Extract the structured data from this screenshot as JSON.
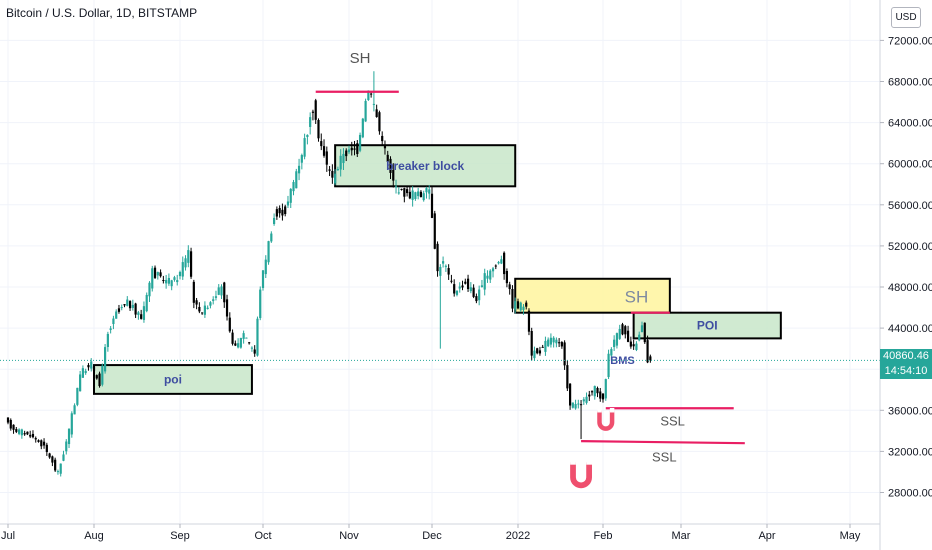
{
  "header": {
    "title": "Bitcoin / U.S. Dollar, 1D, BITSTAMP",
    "currency": "USD"
  },
  "last_price": {
    "value": "40860.46",
    "countdown": "14:54:10"
  },
  "chart_data": {
    "type": "candlestick",
    "y_axis": {
      "min": 26000,
      "max": 74000,
      "ticks": [
        "72000.00",
        "68000.00",
        "64000.00",
        "60000.00",
        "56000.00",
        "52000.00",
        "48000.00",
        "44000.00",
        "40000.00",
        "36000.00",
        "32000.00",
        "28000.00"
      ]
    },
    "x_axis": {
      "labels": [
        "Jul",
        "Aug",
        "Sep",
        "Oct",
        "Nov",
        "Dec",
        "2022",
        "Feb",
        "Mar",
        "Apr",
        "May"
      ]
    },
    "price_path": [
      [
        "2021-07-01",
        35000
      ],
      [
        "2021-07-05",
        34000
      ],
      [
        "2021-07-10",
        33600
      ],
      [
        "2021-07-15",
        32500
      ],
      [
        "2021-07-20",
        29800
      ],
      [
        "2021-07-24",
        34000
      ],
      [
        "2021-07-28",
        39500
      ],
      [
        "2021-08-01",
        40500
      ],
      [
        "2021-08-04",
        38500
      ],
      [
        "2021-08-07",
        43500
      ],
      [
        "2021-08-10",
        45500
      ],
      [
        "2021-08-14",
        46500
      ],
      [
        "2021-08-19",
        45000
      ],
      [
        "2021-08-23",
        49500
      ],
      [
        "2021-08-28",
        48500
      ],
      [
        "2021-09-01",
        48800
      ],
      [
        "2021-09-05",
        51500
      ],
      [
        "2021-09-07",
        46500
      ],
      [
        "2021-09-10",
        45500
      ],
      [
        "2021-09-14",
        47000
      ],
      [
        "2021-09-17",
        48000
      ],
      [
        "2021-09-20",
        43500
      ],
      [
        "2021-09-22",
        42000
      ],
      [
        "2021-09-25",
        43500
      ],
      [
        "2021-09-29",
        41500
      ],
      [
        "2021-10-01",
        48000
      ],
      [
        "2021-10-06",
        55000
      ],
      [
        "2021-10-10",
        55500
      ],
      [
        "2021-10-15",
        60000
      ],
      [
        "2021-10-20",
        65500
      ],
      [
        "2021-10-23",
        61500
      ],
      [
        "2021-10-27",
        58500
      ],
      [
        "2021-10-31",
        61000
      ],
      [
        "2021-11-05",
        61500
      ],
      [
        "2021-11-09",
        67500
      ],
      [
        "2021-11-12",
        64500
      ],
      [
        "2021-11-16",
        60000
      ],
      [
        "2021-11-19",
        57500
      ],
      [
        "2021-11-24",
        57000
      ],
      [
        "2021-11-28",
        57000
      ],
      [
        "2021-12-01",
        57500
      ],
      [
        "2021-12-04",
        49500
      ],
      [
        "2021-12-06",
        50500
      ],
      [
        "2021-12-10",
        47500
      ],
      [
        "2021-12-14",
        48500
      ],
      [
        "2021-12-18",
        46800
      ],
      [
        "2021-12-21",
        48900
      ],
      [
        "2021-12-27",
        50800
      ],
      [
        "2021-12-31",
        46300
      ],
      [
        "2022-01-05",
        46000
      ],
      [
        "2022-01-07",
        41500
      ],
      [
        "2022-01-10",
        41800
      ],
      [
        "2022-01-14",
        43000
      ],
      [
        "2022-01-18",
        42200
      ],
      [
        "2022-01-21",
        36500
      ],
      [
        "2022-01-24",
        36500
      ],
      [
        "2022-01-27",
        37200
      ],
      [
        "2022-01-30",
        38000
      ],
      [
        "2022-02-02",
        37000
      ],
      [
        "2022-02-04",
        41500
      ],
      [
        "2022-02-08",
        44000
      ],
      [
        "2022-02-10",
        43500
      ],
      [
        "2022-02-12",
        42000
      ],
      [
        "2022-02-14",
        42500
      ],
      [
        "2022-02-16",
        44300
      ],
      [
        "2022-02-18",
        40900
      ]
    ],
    "annotations": [
      {
        "kind": "zone",
        "label": "poi",
        "x1": "2021-08-01",
        "x2": "2021-09-27",
        "y_top": 40400,
        "y_bottom": 37600,
        "fill": "#c8e6c9",
        "text_color": "#3f4ea1"
      },
      {
        "kind": "zone",
        "label": "breaker block",
        "x1": "2021-10-27",
        "x2": "2021-12-31",
        "y_top": 61800,
        "y_bottom": 57800,
        "fill": "#c8e6c9",
        "text_color": "#3f4ea1"
      },
      {
        "kind": "zone",
        "label": "",
        "x1": "2021-12-31",
        "x2": "2022-02-25",
        "y_top": 48800,
        "y_bottom": 45500,
        "fill": "#fff59d",
        "text_color": "#3f4ea1"
      },
      {
        "kind": "zone",
        "label": "POI",
        "x1": "2022-02-12",
        "x2": "2022-04-06",
        "y_top": 45500,
        "y_bottom": 43000,
        "fill": "#c8e6c9",
        "text_color": "#3f4ea1"
      },
      {
        "kind": "line",
        "label": "SH",
        "x1": "2021-10-20",
        "x2": "2021-11-19",
        "y1": 67000,
        "y2": 67000,
        "color": "#e91e63"
      },
      {
        "kind": "line",
        "label": "",
        "x1": "2022-02-11",
        "x2": "2022-02-25",
        "y1": 45500,
        "y2": 45500,
        "color": "#e91e63"
      },
      {
        "kind": "line",
        "label": "SSL",
        "x1": "2022-02-02",
        "x2": "2022-03-20",
        "y1": 36200,
        "y2": 36200,
        "color": "#e91e63"
      },
      {
        "kind": "line",
        "label": "SSL",
        "x1": "2022-01-24",
        "x2": "2022-03-24",
        "y1": 33000,
        "y2": 32800,
        "color": "#e91e63"
      }
    ],
    "texts": [
      {
        "text": "SH",
        "x": "2021-11-05",
        "y": 69800,
        "color": "#555555",
        "size": 15
      },
      {
        "text": "SH",
        "x": "2022-02-13",
        "y": 46500,
        "color": "#7e8aa0",
        "size": 17
      },
      {
        "text": "BMS",
        "x": "2022-02-08",
        "y": 40500,
        "color": "#3f4ea1",
        "size": 11
      },
      {
        "text": "SSL",
        "x": "2022-02-26",
        "y": 34500,
        "color": "#555555",
        "size": 13
      },
      {
        "text": "SSL",
        "x": "2022-02-23",
        "y": 31000,
        "color": "#555555",
        "size": 13
      }
    ],
    "magnets": [
      {
        "x": "2022-02-02",
        "y": 35000,
        "scale": 0.9
      },
      {
        "x": "2022-01-24",
        "y": 29700,
        "scale": 1.15
      }
    ],
    "colors": {
      "up": "#26a69a",
      "down": "#000000",
      "grid": "#f0f3fa",
      "last_price_line": "#26a69a"
    }
  }
}
